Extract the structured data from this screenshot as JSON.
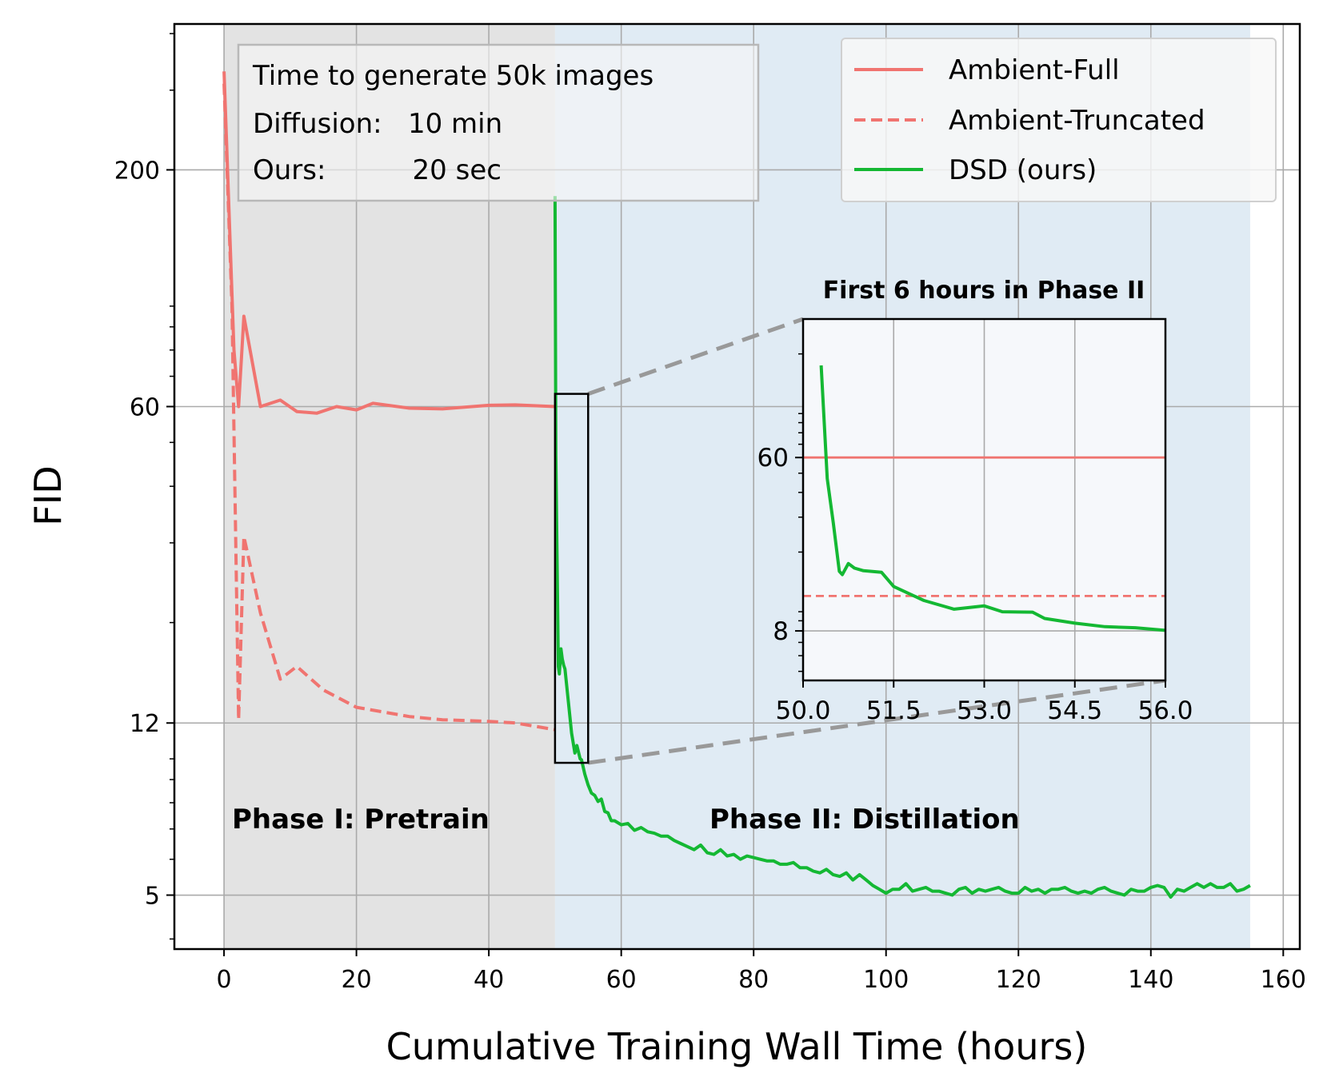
{
  "chart_data": {
    "type": "line",
    "y_scale": "log",
    "xlabel": "Cumulative Training Wall Time (hours)",
    "ylabel": "FID",
    "xlim": [
      -7.5,
      162.5
    ],
    "ylim": [
      3.8,
      420
    ],
    "x_ticks": [
      0,
      20,
      40,
      60,
      80,
      100,
      120,
      140,
      160
    ],
    "x_tick_labels": [
      "0",
      "20",
      "40",
      "60",
      "80",
      "100",
      "120",
      "140",
      "160"
    ],
    "y_ticks": [
      5,
      12,
      60,
      200
    ],
    "y_tick_labels": [
      "5",
      "12",
      "60",
      "200"
    ],
    "grid": true,
    "legend_position": "top-right",
    "phases": [
      {
        "label": "Phase I: Pretrain",
        "x_range": [
          0,
          50
        ],
        "color": "#e3e3e3"
      },
      {
        "label": "Phase II: Distillation",
        "x_range": [
          50,
          155
        ],
        "color": "#e0ebf4"
      }
    ],
    "info_box": {
      "lines": [
        "Time to generate 50k images",
        "Diffusion:   10 min",
        "Ours:          20 sec"
      ]
    },
    "series": [
      {
        "name": "Ambient-Full",
        "color": "#f07470",
        "style": "solid",
        "x": [
          0,
          1.5,
          2.2,
          3,
          5.5,
          8.5,
          11,
          14,
          17,
          20,
          22.5,
          28,
          33,
          40,
          44,
          50
        ],
        "y": [
          330,
          80,
          60,
          95,
          60,
          62,
          58.5,
          58,
          60,
          59,
          61,
          59.5,
          59.3,
          60.4,
          60.5,
          60
        ]
      },
      {
        "name": "Ambient-Truncated",
        "color": "#f07470",
        "style": "dashed",
        "x": [
          0,
          1.2,
          2.2,
          3,
          5.5,
          8.5,
          11,
          15,
          20,
          28,
          33,
          40,
          44,
          50
        ],
        "y": [
          310,
          100,
          12.2,
          31,
          21,
          15,
          16,
          14.2,
          13,
          12.4,
          12.2,
          12.1,
          12.0,
          11.6
        ]
      },
      {
        "name": "DSD (ours)",
        "color": "#14b833",
        "style": "solid",
        "x": [
          50,
          50.12,
          50.3,
          50.5,
          50.65,
          50.9,
          51.1,
          51.3,
          51.5,
          52.0,
          52.5,
          53.0,
          53.3,
          53.8,
          54.0,
          54.5,
          55,
          55.5,
          56,
          56.5,
          57,
          57.5,
          58,
          58.5,
          59,
          60,
          61,
          62,
          63,
          64,
          65,
          66,
          67,
          68,
          69,
          70,
          71,
          72,
          73,
          74,
          75,
          76,
          77,
          78,
          79,
          80,
          81,
          82,
          83,
          84,
          85,
          86,
          87,
          88,
          89,
          90,
          91,
          92,
          93,
          94,
          95,
          96,
          97,
          98,
          99,
          100,
          101,
          102,
          103,
          104,
          105,
          106,
          107,
          108,
          109,
          110,
          111,
          112,
          113,
          114,
          115,
          116,
          117,
          118,
          119,
          120,
          121,
          122,
          123,
          124,
          125,
          126,
          127,
          128,
          129,
          130,
          131,
          132,
          133,
          134,
          135,
          136,
          137,
          138,
          139,
          140,
          141,
          142,
          143,
          144,
          145,
          146,
          147,
          148,
          149,
          150,
          151,
          152,
          153,
          154,
          155
        ],
        "y": [
          175,
          47,
          28,
          16,
          15.4,
          17.5,
          16.6,
          16.1,
          15.8,
          13.4,
          11.4,
          10.3,
          10.7,
          10.0,
          9.95,
          9.25,
          8.75,
          8.4,
          8.3,
          8.05,
          8.15,
          7.65,
          7.6,
          7.3,
          7.3,
          7.15,
          7.2,
          6.95,
          7.05,
          6.9,
          6.85,
          6.75,
          6.75,
          6.6,
          6.5,
          6.4,
          6.3,
          6.45,
          6.2,
          6.15,
          6.3,
          6.1,
          6.15,
          6.0,
          6.1,
          6.05,
          6.0,
          5.95,
          5.95,
          5.85,
          5.85,
          5.9,
          5.75,
          5.75,
          5.65,
          5.6,
          5.7,
          5.55,
          5.5,
          5.6,
          5.4,
          5.55,
          5.4,
          5.25,
          5.15,
          5.05,
          5.15,
          5.15,
          5.3,
          5.1,
          5.15,
          5.2,
          5.1,
          5.1,
          5.05,
          5.0,
          5.15,
          5.2,
          5.05,
          5.15,
          5.1,
          5.15,
          5.2,
          5.1,
          5.05,
          5.05,
          5.2,
          5.1,
          5.15,
          5.05,
          5.15,
          5.15,
          5.2,
          5.1,
          5.05,
          5.1,
          5.05,
          5.15,
          5.2,
          5.1,
          5.05,
          5.0,
          5.15,
          5.1,
          5.1,
          5.2,
          5.25,
          5.2,
          4.95,
          5.15,
          5.1,
          5.2,
          5.3,
          5.2,
          5.3,
          5.2,
          5.2,
          5.3,
          5.1,
          5.15,
          5.25
        ]
      }
    ],
    "inset": {
      "title": "First 6 hours in Phase II",
      "xlim": [
        50,
        56
      ],
      "ylim": [
        4.5,
        300
      ],
      "x_ticks": [
        50,
        51.5,
        53,
        54.5,
        56
      ],
      "x_tick_labels": [
        "50.0",
        "51.5",
        "53.0",
        "54.5",
        "56.0"
      ],
      "y_ticks": [
        8,
        60
      ],
      "y_tick_labels": [
        "8",
        "60"
      ],
      "zoom_region": {
        "x": [
          50,
          55
        ],
        "y": [
          9.8,
          64
        ]
      },
      "series": [
        {
          "name": "Ambient-Full",
          "color": "#f07470",
          "style": "solid",
          "x": [
            50,
            56
          ],
          "y": [
            60,
            60
          ]
        },
        {
          "name": "Ambient-Truncated",
          "color": "#f07470",
          "style": "dashed",
          "x": [
            50,
            56
          ],
          "y": [
            12,
            12
          ]
        },
        {
          "name": "DSD (ours)",
          "color": "#14b833",
          "style": "solid",
          "x": [
            50.3,
            50.4,
            50.5,
            50.6,
            50.65,
            50.75,
            50.85,
            51.0,
            51.3,
            51.5,
            52.0,
            52.5,
            53.0,
            53.3,
            53.8,
            54.0,
            54.5,
            55,
            55.5,
            56
          ],
          "y": [
            175,
            47,
            28,
            16,
            15.4,
            17.5,
            16.6,
            16.1,
            15.8,
            13.4,
            11.4,
            10.3,
            10.7,
            10.0,
            9.95,
            9.25,
            8.75,
            8.4,
            8.3,
            8.05
          ]
        }
      ]
    }
  }
}
